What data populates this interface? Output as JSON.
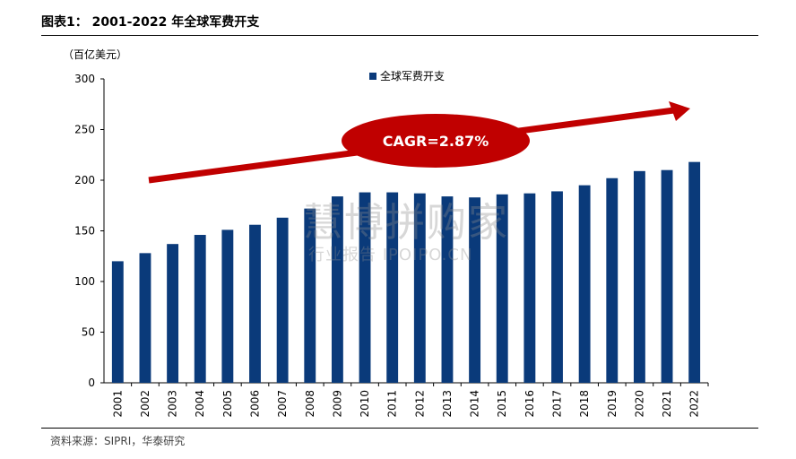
{
  "header": {
    "title": "图表1： 2001-2022 年全球军费开支"
  },
  "footer": {
    "source": "资料来源：SIPRI，华泰研究"
  },
  "watermark": {
    "main": "慧博拼购家",
    "sub": "行业报告 IPOIPO.CN"
  },
  "colors": {
    "bar": "#0a3a7a",
    "arrow": "#c00000",
    "cagr_text": "#ffffff"
  },
  "chart_data": {
    "type": "bar",
    "unit_label": "（百亿美元）",
    "categories": [
      "2001",
      "2002",
      "2003",
      "2004",
      "2005",
      "2006",
      "2007",
      "2008",
      "2009",
      "2010",
      "2011",
      "2012",
      "2013",
      "2014",
      "2015",
      "2016",
      "2017",
      "2018",
      "2019",
      "2020",
      "2021",
      "2022"
    ],
    "series": [
      {
        "name": "全球军费开支",
        "values": [
          120,
          128,
          137,
          146,
          151,
          156,
          163,
          172,
          184,
          188,
          188,
          187,
          184,
          183,
          186,
          187,
          189,
          195,
          202,
          209,
          210,
          218
        ]
      }
    ],
    "ylim": [
      0,
      300
    ],
    "yticks": [
      0,
      50,
      100,
      150,
      200,
      250,
      300
    ],
    "annotation": "CAGR=2.87%",
    "legend_position": "top-center",
    "grid": false
  }
}
